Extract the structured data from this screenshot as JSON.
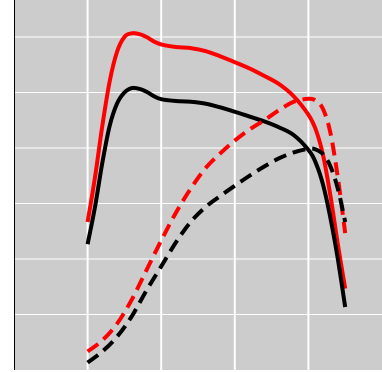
{
  "chart_data": {
    "type": "line",
    "title": "",
    "xlabel": "",
    "ylabel": "",
    "xlim": [
      0,
      100
    ],
    "ylim": [
      0,
      100
    ],
    "x_gridlines": [
      20,
      40,
      60,
      80
    ],
    "y_gridlines": [
      15,
      30,
      45,
      60,
      75,
      90
    ],
    "grid": true,
    "legend": "none",
    "background_color": "#cccccc",
    "grid_color": "#ffffff",
    "series": [
      {
        "color": "#ff0000",
        "style": "solid",
        "x": [
          20,
          22,
          24,
          26,
          28,
          30,
          32,
          34,
          36,
          38,
          40,
          44,
          48,
          52,
          56,
          60,
          64,
          68,
          72,
          76,
          80,
          82,
          84,
          86,
          88,
          90
        ],
        "y": [
          40,
          52,
          66,
          78,
          86,
          90,
          91,
          90.8,
          90,
          88.8,
          88,
          87.3,
          87,
          86.2,
          84.8,
          83.2,
          81.5,
          79.5,
          77.3,
          74,
          69,
          65,
          58,
          47,
          34,
          22
        ]
      },
      {
        "color": "#000000",
        "style": "solid",
        "x": [
          20,
          22,
          24,
          26,
          28,
          30,
          32,
          34,
          36,
          38,
          40,
          44,
          48,
          52,
          56,
          60,
          64,
          68,
          72,
          76,
          80,
          82,
          84,
          86,
          88,
          90
        ],
        "y": [
          34,
          44,
          56,
          66,
          72,
          75,
          76.2,
          76,
          75.2,
          74,
          73.2,
          72.7,
          72.5,
          72,
          71,
          69.8,
          68.5,
          67.2,
          65.6,
          63.5,
          59.5,
          56,
          50,
          41,
          30,
          17
        ]
      },
      {
        "color": "#ff0000",
        "style": "dashed",
        "x": [
          20,
          24,
          28,
          32,
          36,
          40,
          44,
          48,
          52,
          56,
          60,
          64,
          68,
          72,
          76,
          80,
          82,
          84,
          86,
          88,
          90
        ],
        "y": [
          5,
          8,
          12.5,
          19,
          27,
          35,
          42.5,
          49,
          54.5,
          58.5,
          62,
          65,
          67.5,
          70.2,
          72.5,
          73.3,
          72.8,
          70.5,
          64,
          52,
          37
        ]
      },
      {
        "color": "#000000",
        "style": "dashed",
        "x": [
          20,
          24,
          28,
          32,
          36,
          40,
          44,
          48,
          52,
          56,
          60,
          64,
          68,
          72,
          76,
          80,
          82,
          84,
          86,
          88,
          90
        ],
        "y": [
          2,
          5,
          9,
          14.5,
          21.5,
          28,
          34.5,
          40,
          44,
          47,
          49.8,
          52.5,
          55,
          57.2,
          58.8,
          59.8,
          59.6,
          58.3,
          55,
          49,
          40
        ]
      }
    ]
  }
}
